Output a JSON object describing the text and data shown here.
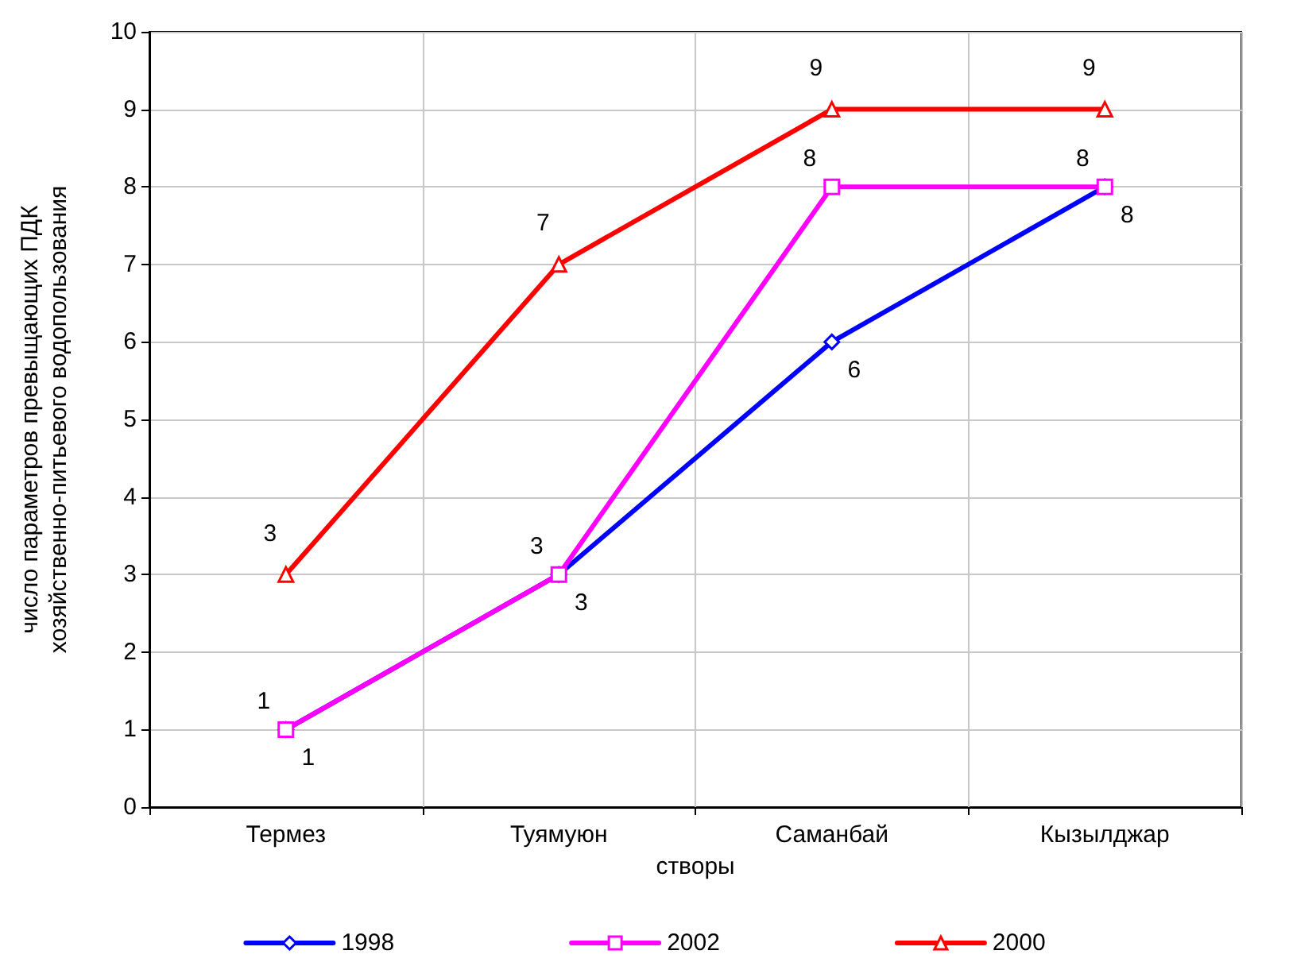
{
  "chart_data": {
    "type": "line",
    "xlabel": "створы",
    "ylabel": "число параметров превыщающих ПДК хозяйственно-питьевого водопользования",
    "categories": [
      "Термез",
      "Туямуюн",
      "Саманбай",
      "Кызылджар"
    ],
    "series": [
      {
        "name": "1998",
        "color": "#0000ff",
        "marker": "diamond",
        "values": [
          1,
          3,
          6,
          8
        ]
      },
      {
        "name": "2002",
        "color": "#ff00ff",
        "marker": "square",
        "values": [
          1,
          3,
          8,
          8
        ]
      },
      {
        "name": "2000",
        "color": "#ff0000",
        "marker": "triangle",
        "values": [
          3,
          7,
          9,
          9
        ]
      }
    ],
    "ylim": [
      0,
      10
    ],
    "yticks": [
      0,
      1,
      2,
      3,
      4,
      5,
      6,
      7,
      8,
      9,
      10
    ],
    "grid": true,
    "legend": "bottom",
    "data_labels": true,
    "line_style": "solid"
  }
}
